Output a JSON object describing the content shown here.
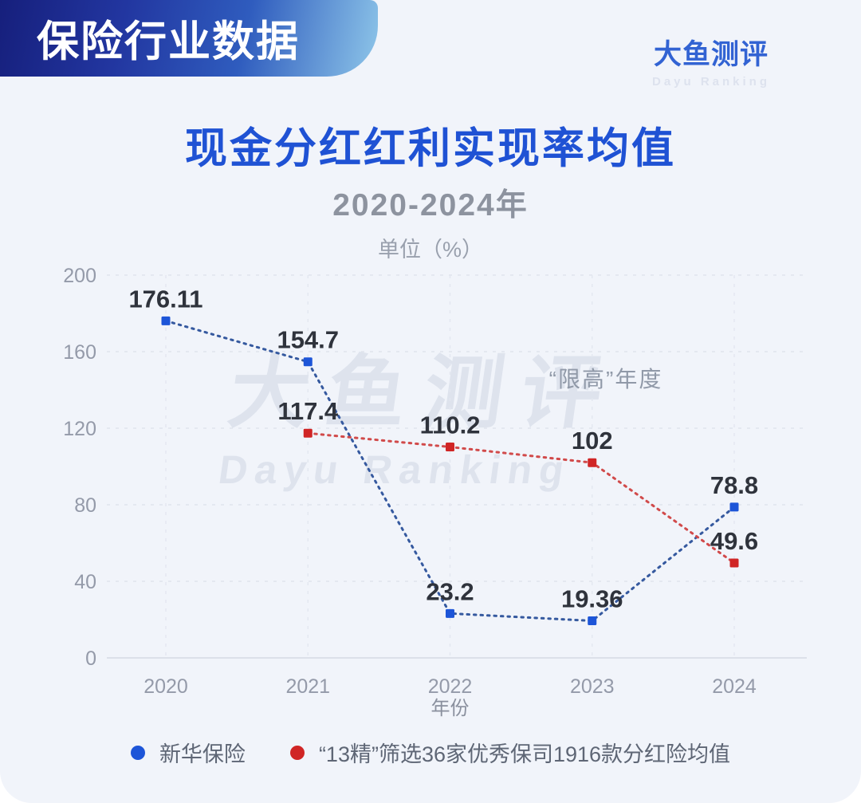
{
  "header": {
    "badge_label": "保险行业数据",
    "logo_title": "大鱼测评",
    "logo_subtitle": "Dayu Ranking"
  },
  "watermark": {
    "line1": "大鱼测评",
    "line2": "Dayu Ranking"
  },
  "chart_data": {
    "type": "line",
    "title": "现金分红红利实现率均值",
    "subtitle": "2020-2024年",
    "unit": "单位（%）",
    "xlabel": "年份",
    "categories": [
      "2020",
      "2021",
      "2022",
      "2023",
      "2024"
    ],
    "ylim": [
      0,
      200
    ],
    "yticks": [
      0,
      40,
      80,
      120,
      160,
      200
    ],
    "grid": true,
    "line_style": "dotted",
    "legend_position": "bottom",
    "annotation": "“限高”年度",
    "series": [
      {
        "name": "新华保险",
        "color": "#1d55d8",
        "line_color": "#35599f",
        "values": [
          176.11,
          154.7,
          23.2,
          19.36,
          78.8
        ],
        "labels": [
          "176.11",
          "154.7",
          "23.2",
          "19.36",
          "78.8"
        ]
      },
      {
        "name": "“13精”筛选36家优秀保司1916款分红险均值",
        "color": "#d02525",
        "line_color": "#d14a4a",
        "values": [
          null,
          117.4,
          110.2,
          102,
          49.6
        ],
        "labels": [
          "",
          "117.4",
          "110.2",
          "102",
          "49.6"
        ]
      }
    ]
  },
  "colors": {
    "title": "#1f52d4",
    "background": "#f1f4fa",
    "grid": "#dfe3ec",
    "axis_text": "#949aa9",
    "data_label": "#2f333c"
  }
}
